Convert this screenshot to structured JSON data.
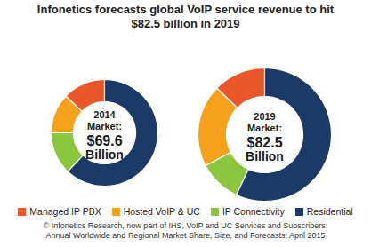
{
  "chart_data": {
    "type": "donut",
    "title": "Infonetics forecasts global VoIP service revenue to hit $82.5 billion in 2019",
    "categories": [
      "Managed IP PBX",
      "Hosted VoIP & UC",
      "IP Connectivity",
      "Residential"
    ],
    "colors": [
      "#e8562a",
      "#f5a11c",
      "#8cc63e",
      "#1b3a67"
    ],
    "series": [
      {
        "name": "2014",
        "values": [
          9.0,
          8.4,
          9.0,
          43.2
        ],
        "center_text": [
          "Market:",
          "$69.6",
          "Billion"
        ]
      },
      {
        "name": "2019",
        "values": [
          10.5,
          16.5,
          8.5,
          47.0
        ],
        "center_text": [
          "Market:",
          "$82.5",
          "Billion"
        ]
      }
    ],
    "legend": "bottom",
    "source": [
      "© Infonetics Research, now part of IHS, VoIP and UC Services and Subscribers:",
      "Annual Worldwide and Regional Market Share, Size, and Forecasts; April 2015"
    ]
  }
}
